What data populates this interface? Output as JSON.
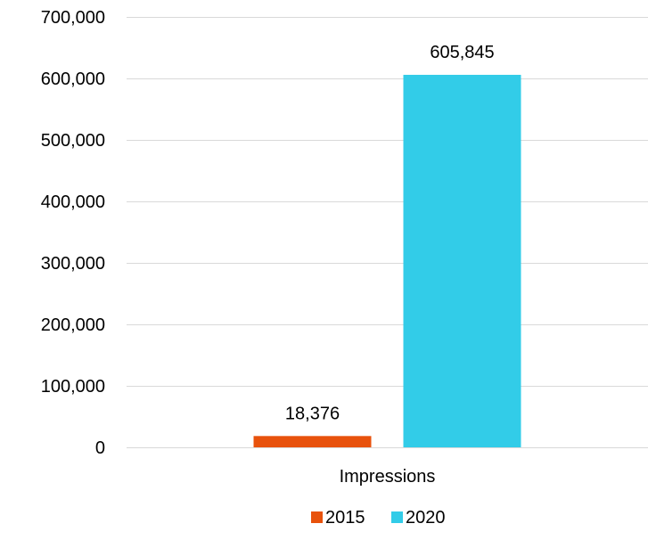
{
  "chart_data": {
    "type": "bar",
    "categories": [
      "Impressions"
    ],
    "series": [
      {
        "name": "2015",
        "values": [
          18376
        ],
        "color": "#E8520C",
        "value_labels": [
          "18,376"
        ]
      },
      {
        "name": "2020",
        "values": [
          605845
        ],
        "color": "#32CCE8",
        "value_labels": [
          "605,845"
        ]
      }
    ],
    "ylim": [
      0,
      700000
    ],
    "yticks": [
      0,
      100000,
      200000,
      300000,
      400000,
      500000,
      600000,
      700000
    ],
    "ytick_labels": [
      "0",
      "100,000",
      "200,000",
      "300,000",
      "400,000",
      "500,000",
      "600,000",
      "700,000"
    ],
    "grid": true,
    "legend_position": "bottom"
  }
}
